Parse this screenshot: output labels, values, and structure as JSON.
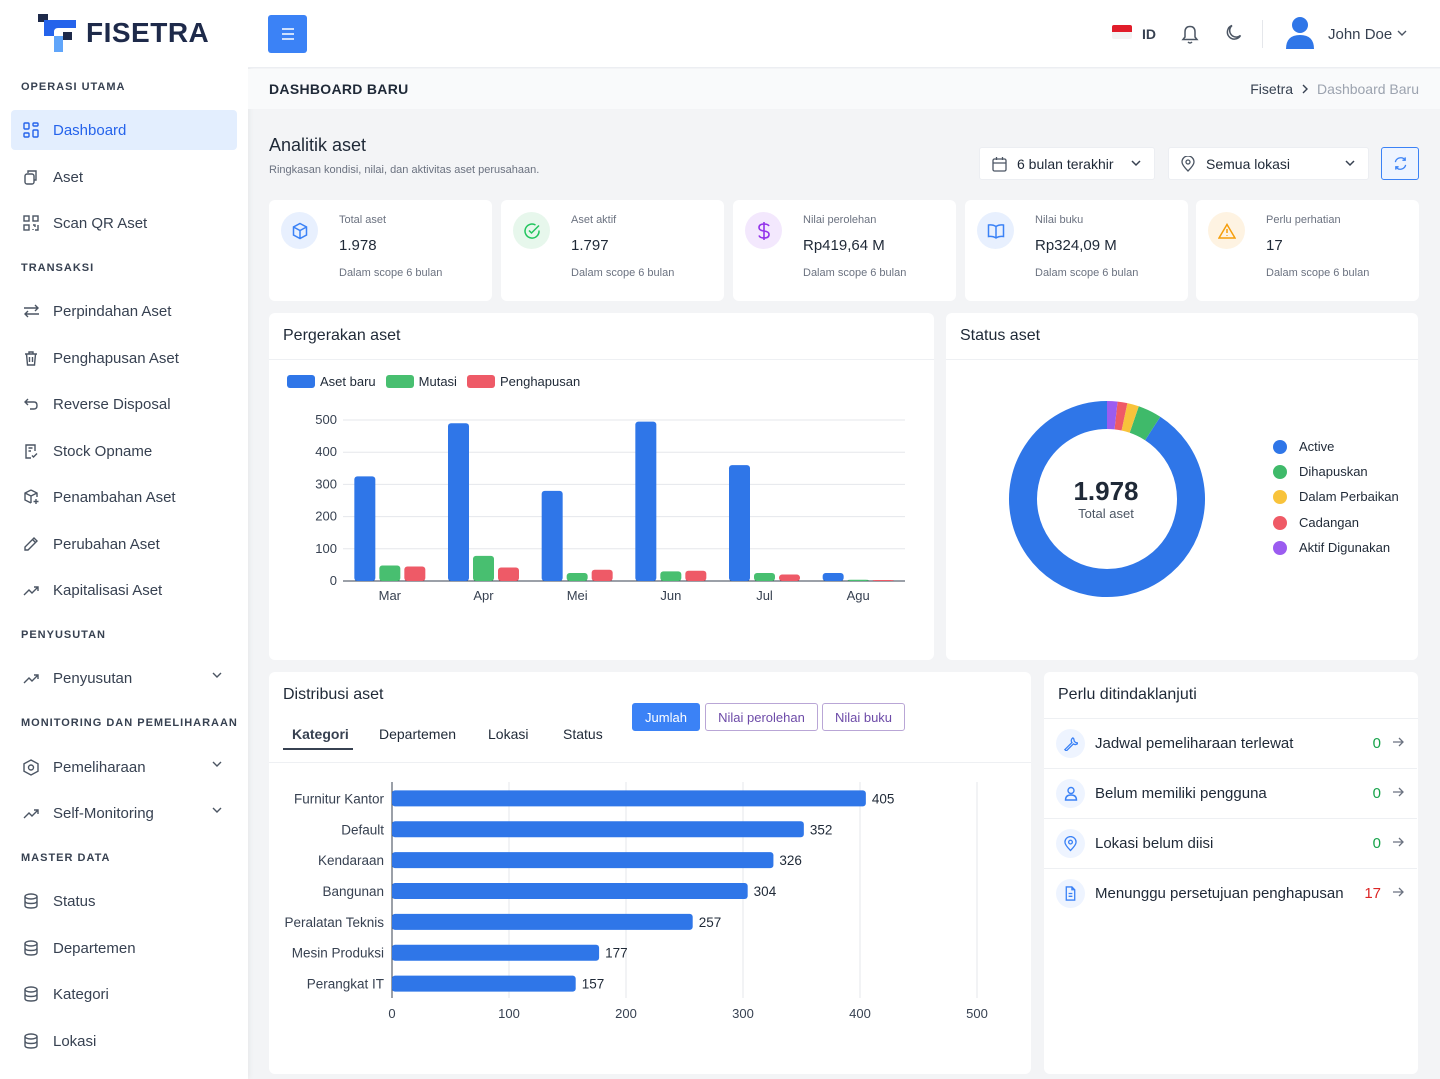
{
  "app": {
    "brand": "FISETRA"
  },
  "sidebar": {
    "sections": {
      "main": "OPERASI UTAMA",
      "trans": "TRANSAKSI",
      "depr": "PENYUSUTAN",
      "mon": "MONITORING DAN PEMELIHARAAN",
      "master": "MASTER DATA"
    },
    "items": [
      {
        "label": "Dashboard",
        "icon": "dashboard-icon"
      },
      {
        "label": "Aset",
        "icon": "copy-icon"
      },
      {
        "label": "Scan QR Aset",
        "icon": "qr-icon"
      },
      {
        "label": "Perpindahan Aset",
        "icon": "arrows-icon"
      },
      {
        "label": "Penghapusan Aset",
        "icon": "trash-icon"
      },
      {
        "label": "Reverse Disposal",
        "icon": "undo-icon"
      },
      {
        "label": "Stock Opname",
        "icon": "clipboard-icon"
      },
      {
        "label": "Penambahan Aset",
        "icon": "box-plus-icon"
      },
      {
        "label": "Perubahan Aset",
        "icon": "pencil-icon"
      },
      {
        "label": "Kapitalisasi Aset",
        "icon": "trend-icon"
      },
      {
        "label": "Penyusutan",
        "icon": "trend-icon"
      },
      {
        "label": "Pemeliharaan",
        "icon": "hexagon-icon"
      },
      {
        "label": "Self-Monitoring",
        "icon": "trend-icon"
      },
      {
        "label": "Status",
        "icon": "database-icon"
      },
      {
        "label": "Departemen",
        "icon": "database-icon"
      },
      {
        "label": "Kategori",
        "icon": "database-icon"
      },
      {
        "label": "Lokasi",
        "icon": "database-icon"
      }
    ]
  },
  "topbar": {
    "lang": "ID",
    "user": "John Doe"
  },
  "page": {
    "title": "DASHBOARD BARU",
    "crumb_home": "Fisetra",
    "crumb_current": "Dashboard Baru"
  },
  "analytics": {
    "title": "Analitik aset",
    "subtitle": "Ringkasan kondisi, nilai, dan aktivitas aset perusahaan.",
    "period": "6 bulan terakhir",
    "location": "Semua lokasi"
  },
  "kpis": [
    {
      "label": "Total aset",
      "value": "1.978",
      "sub": "Dalam scope 6 bulan",
      "color": "#3b82f6"
    },
    {
      "label": "Aset aktif",
      "value": "1.797",
      "sub": "Dalam scope 6 bulan",
      "color": "#22c55e"
    },
    {
      "label": "Nilai perolehan",
      "value": "Rp419,64 M",
      "sub": "Dalam scope 6 bulan",
      "color": "#9333ea"
    },
    {
      "label": "Nilai buku",
      "value": "Rp324,09 M",
      "sub": "Dalam scope 6 bulan",
      "color": "#3b82f6"
    },
    {
      "label": "Perlu perhatian",
      "value": "17",
      "sub": "Dalam scope 6 bulan",
      "color": "#f59e0b"
    }
  ],
  "movement": {
    "title": "Pergerakan aset"
  },
  "status": {
    "title": "Status aset",
    "center_value": "1.978",
    "center_label": "Total aset"
  },
  "distribution": {
    "title": "Distribusi aset",
    "tabs": [
      "Kategori",
      "Departemen",
      "Lokasi",
      "Status"
    ],
    "modes": [
      "Jumlah",
      "Nilai perolehan",
      "Nilai buku"
    ]
  },
  "todo": {
    "title": "Perlu ditindaklanjuti",
    "items": [
      {
        "label": "Jadwal pemeliharaan terlewat",
        "count": "0",
        "color": "#16a34a"
      },
      {
        "label": "Belum memiliki pengguna",
        "count": "0",
        "color": "#16a34a"
      },
      {
        "label": "Lokasi belum diisi",
        "count": "0",
        "color": "#16a34a"
      },
      {
        "label": "Menunggu persetujuan penghapusan",
        "count": "17",
        "color": "#dc2626"
      }
    ]
  },
  "chart_data": [
    {
      "type": "bar",
      "title": "Pergerakan aset",
      "categories": [
        "Mar",
        "Apr",
        "Mei",
        "Jun",
        "Jul",
        "Agu"
      ],
      "ylim": [
        0,
        500
      ],
      "yticks": [
        "0",
        "100",
        "200",
        "300",
        "400",
        "500"
      ],
      "legend": "top-left",
      "grid": true,
      "series": [
        {
          "name": "Aset baru",
          "color": "#2f76e8",
          "values": [
            325,
            490,
            280,
            495,
            360,
            25
          ]
        },
        {
          "name": "Mutasi",
          "color": "#48bf70",
          "values": [
            48,
            78,
            25,
            30,
            25,
            4
          ]
        },
        {
          "name": "Penghapusan",
          "color": "#ee5a67",
          "values": [
            45,
            42,
            35,
            32,
            20,
            3
          ]
        }
      ]
    },
    {
      "type": "pie",
      "title": "Status aset",
      "legend": "right",
      "labels": [
        "Active",
        "Dihapuskan",
        "Dalam Perbaikan",
        "Cadangan",
        "Aktif Digunakan"
      ],
      "colors": [
        "#2f76e8",
        "#3fba6a",
        "#f8c33b",
        "#ef5a66",
        "#9b5cf0"
      ],
      "values": [
        1797,
        77,
        38,
        32,
        34
      ]
    },
    {
      "type": "bar",
      "orientation": "horizontal",
      "title": "Distribusi aset",
      "categories": [
        "Furnitur Kantor",
        "Default",
        "Kendaraan",
        "Bangunan",
        "Peralatan Teknis",
        "Mesin Produksi",
        "Perangkat IT"
      ],
      "values": [
        405,
        352,
        326,
        304,
        257,
        177,
        157
      ],
      "xlim": [
        0,
        500
      ],
      "xticks": [
        "0",
        "100",
        "200",
        "300",
        "400",
        "500"
      ],
      "color": "#2f76e8",
      "grid": true
    }
  ]
}
